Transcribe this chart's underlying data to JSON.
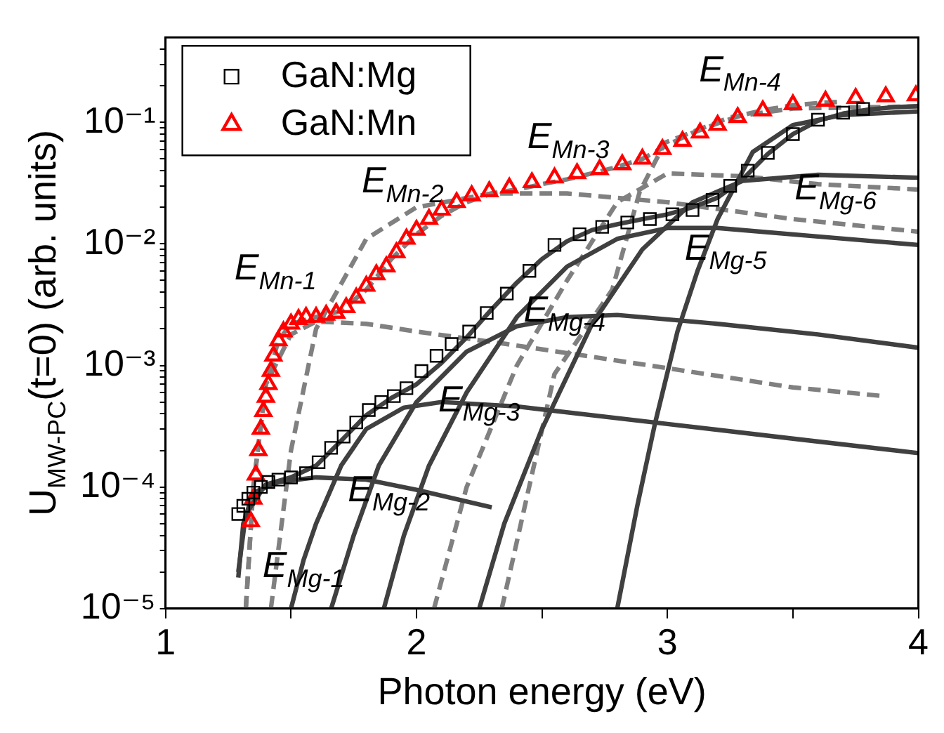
{
  "chart_data": {
    "type": "line",
    "xlabel": "Photon energy (eV)",
    "ylabel": "U$_{MW-PC}$(t=0) (arb. units)",
    "log": "y",
    "grid": false,
    "legend": "top left",
    "xlim": [
      1,
      4
    ],
    "xticks": [
      1,
      {
        "value": 1.5,
        "label": null
      },
      2,
      {
        "value": 2.5,
        "label": null
      },
      3,
      {
        "value": 3.5,
        "label": null
      },
      4
    ],
    "ylim": [
      1e-05,
      0.5
    ],
    "yticks": [
      {
        "value": 1e-05,
        "label": "10⁻⁵"
      },
      {
        "value": 2e-05,
        "label": null
      },
      {
        "value": 3e-05,
        "label": null
      },
      {
        "value": 4e-05,
        "label": null
      },
      {
        "value": 5e-05,
        "label": null
      },
      {
        "value": 6e-05,
        "label": null
      },
      {
        "value": 7e-05,
        "label": null
      },
      {
        "value": 8e-05,
        "label": null
      },
      {
        "value": 9e-05,
        "label": null
      },
      {
        "value": 0.0001,
        "label": "10⁻⁴"
      },
      {
        "value": 0.0002,
        "label": null
      },
      {
        "value": 0.0003,
        "label": null
      },
      {
        "value": 0.0004,
        "label": null
      },
      {
        "value": 0.0005,
        "label": null
      },
      {
        "value": 0.0006,
        "label": null
      },
      {
        "value": 0.0007,
        "label": null
      },
      {
        "value": 0.0008,
        "label": null
      },
      {
        "value": 0.0009,
        "label": null
      },
      {
        "value": 0.001,
        "label": "10⁻³"
      },
      {
        "value": 0.002,
        "label": null
      },
      {
        "value": 0.003,
        "label": null
      },
      {
        "value": 0.004,
        "label": null
      },
      {
        "value": 0.005,
        "label": null
      },
      {
        "value": 0.006,
        "label": null
      },
      {
        "value": 0.007,
        "label": null
      },
      {
        "value": 0.008,
        "label": null
      },
      {
        "value": 0.009,
        "label": null
      },
      {
        "value": 0.01,
        "label": "10⁻²"
      },
      {
        "value": 0.02,
        "label": null
      },
      {
        "value": 0.03,
        "label": null
      },
      {
        "value": 0.04,
        "label": null
      },
      {
        "value": 0.05,
        "label": null
      },
      {
        "value": 0.06,
        "label": null
      },
      {
        "value": 0.07,
        "label": null
      },
      {
        "value": 0.08,
        "label": null
      },
      {
        "value": 0.09,
        "label": null
      },
      {
        "value": 0.1,
        "label": "10⁻¹"
      },
      {
        "value": 0.2,
        "label": null
      },
      {
        "value": 0.3,
        "label": null
      },
      {
        "value": 0.4,
        "label": null
      }
    ],
    "series": [
      {
        "name": "GaN:Mg",
        "type": "scatter",
        "marker": "square",
        "color": "#000000",
        "x": [
          1.29,
          1.31,
          1.33,
          1.35,
          1.38,
          1.41,
          1.45,
          1.5,
          1.56,
          1.61,
          1.66,
          1.71,
          1.76,
          1.81,
          1.86,
          1.91,
          1.96,
          2.02,
          2.08,
          2.14,
          2.21,
          2.28,
          2.36,
          2.45,
          2.55,
          2.65,
          2.74,
          2.84,
          2.93,
          3.02,
          3.1,
          3.18,
          3.25,
          3.32,
          3.4,
          3.5,
          3.6,
          3.7,
          3.78
        ],
        "values": [
          6e-05,
          7e-05,
          8e-05,
          9e-05,
          0.0001,
          0.00011,
          0.000115,
          0.00012,
          0.00013,
          0.00016,
          0.00021,
          0.00026,
          0.00034,
          0.00043,
          0.0005,
          0.00056,
          0.00065,
          0.0009,
          0.0012,
          0.0015,
          0.0019,
          0.0027,
          0.0039,
          0.006,
          0.0098,
          0.012,
          0.0138,
          0.015,
          0.016,
          0.0175,
          0.019,
          0.023,
          0.03,
          0.04,
          0.056,
          0.08,
          0.105,
          0.12,
          0.129
        ]
      },
      {
        "name": "GaN:Mn",
        "type": "scatter",
        "marker": "triangle",
        "color": "#ff0000",
        "x": [
          1.34,
          1.35,
          1.36,
          1.37,
          1.38,
          1.39,
          1.4,
          1.41,
          1.42,
          1.43,
          1.45,
          1.47,
          1.5,
          1.53,
          1.56,
          1.6,
          1.64,
          1.68,
          1.72,
          1.76,
          1.8,
          1.84,
          1.88,
          1.92,
          1.96,
          2.0,
          2.05,
          2.1,
          2.16,
          2.22,
          2.29,
          2.37,
          2.46,
          2.55,
          2.64,
          2.73,
          2.82,
          2.9,
          2.98,
          3.06,
          3.13,
          3.2,
          3.28,
          3.38,
          3.5,
          3.63,
          3.75,
          3.87,
          3.99
        ],
        "values": [
          5.2e-05,
          8e-05,
          0.000126,
          0.0002,
          0.0003,
          0.00042,
          0.00055,
          0.0007,
          0.0009,
          0.0012,
          0.0016,
          0.0019,
          0.0022,
          0.0024,
          0.0025,
          0.0025,
          0.0026,
          0.0027,
          0.003,
          0.0036,
          0.0045,
          0.0056,
          0.0065,
          0.0085,
          0.011,
          0.013,
          0.016,
          0.019,
          0.022,
          0.025,
          0.027,
          0.029,
          0.032,
          0.035,
          0.038,
          0.041,
          0.045,
          0.05,
          0.06,
          0.07,
          0.082,
          0.095,
          0.11,
          0.125,
          0.14,
          0.15,
          0.158,
          0.163,
          0.166
        ]
      },
      {
        "type": "line",
        "line_style": "solid",
        "color": "#404040",
        "x": [
          1.29,
          1.32,
          1.4,
          1.5,
          1.6,
          1.7,
          1.8,
          1.9,
          2.0,
          2.1,
          2.2,
          2.3,
          2.4,
          2.5,
          2.6,
          2.7,
          2.8,
          2.9,
          3.0,
          3.1,
          3.2,
          3.3,
          3.4,
          3.5,
          3.6,
          3.7,
          3.8,
          3.9,
          4.0
        ],
        "values": [
          2e-05,
          6e-05,
          0.000105,
          0.00012,
          0.00015,
          0.00024,
          0.00039,
          0.00054,
          0.0007,
          0.00105,
          0.0017,
          0.0029,
          0.0048,
          0.0075,
          0.0105,
          0.013,
          0.0145,
          0.016,
          0.0175,
          0.02,
          0.024,
          0.034,
          0.055,
          0.08,
          0.103,
          0.118,
          0.127,
          0.133,
          0.136
        ]
      },
      {
        "type": "line",
        "line_style": "dashed",
        "color": "#808080",
        "x": [
          1.32,
          1.35,
          1.4,
          1.45,
          1.5,
          1.6,
          1.7,
          1.8,
          1.9,
          2.0,
          2.1,
          2.2,
          2.3,
          2.4,
          2.5,
          2.6,
          2.7,
          2.8,
          2.9,
          3.0,
          3.1,
          3.2,
          3.3,
          3.4,
          3.5,
          3.6,
          3.7
        ],
        "values": [
          1e-05,
          0.0001,
          0.0007,
          0.0016,
          0.0022,
          0.0025,
          0.0028,
          0.0042,
          0.0075,
          0.012,
          0.017,
          0.022,
          0.026,
          0.028,
          0.031,
          0.034,
          0.038,
          0.043,
          0.05,
          0.065,
          0.082,
          0.098,
          0.115,
          0.128,
          0.138,
          0.144,
          0.148
        ]
      },
      {
        "type": "line",
        "line_style": "solid",
        "color": "#404040",
        "x": [
          1.29,
          1.31,
          1.35,
          1.45,
          1.6,
          1.8,
          2.0,
          2.3
        ],
        "values": [
          1.8e-05,
          5e-05,
          9e-05,
          0.00011,
          0.00012,
          0.000115,
          9.5e-05,
          6.8e-05
        ]
      },
      {
        "type": "line",
        "line_style": "solid",
        "color": "#404040",
        "x": [
          1.5,
          1.55,
          1.6,
          1.7,
          1.8,
          1.95,
          2.1,
          2.4,
          3.0,
          3.5,
          4.0
        ],
        "values": [
          1e-05,
          2.5e-05,
          5e-05,
          0.00015,
          0.0003,
          0.00045,
          0.0005,
          0.00046,
          0.00033,
          0.00025,
          0.00019
        ]
      },
      {
        "type": "line",
        "line_style": "solid",
        "color": "#404040",
        "x": [
          1.66,
          1.75,
          1.85,
          2.0,
          2.2,
          2.4,
          2.6,
          2.8,
          3.2,
          3.6,
          4.0
        ],
        "values": [
          1e-05,
          4e-05,
          0.00015,
          0.0005,
          0.0013,
          0.0021,
          0.0025,
          0.0026,
          0.0022,
          0.0018,
          0.0014
        ]
      },
      {
        "type": "line",
        "line_style": "solid",
        "color": "#404040",
        "x": [
          1.87,
          1.95,
          2.05,
          2.2,
          2.4,
          2.6,
          2.8,
          3.0,
          3.2,
          3.6,
          4.0
        ],
        "values": [
          1e-05,
          4e-05,
          0.00015,
          0.0006,
          0.0025,
          0.0065,
          0.011,
          0.0135,
          0.0135,
          0.0115,
          0.0098
        ]
      },
      {
        "type": "line",
        "line_style": "solid",
        "color": "#404040",
        "x": [
          2.25,
          2.35,
          2.5,
          2.7,
          2.9,
          3.1,
          3.3,
          3.6,
          4.0
        ],
        "values": [
          1e-05,
          5e-05,
          0.0003,
          0.0022,
          0.009,
          0.022,
          0.033,
          0.037,
          0.035
        ]
      },
      {
        "type": "line",
        "line_style": "solid",
        "color": "#404040",
        "x": [
          2.8,
          2.88,
          2.95,
          3.04,
          3.12,
          3.2,
          3.34,
          3.5,
          3.7,
          4.0
        ],
        "values": [
          1e-05,
          7e-05,
          0.00033,
          0.0019,
          0.006,
          0.016,
          0.057,
          0.095,
          0.115,
          0.123
        ]
      },
      {
        "type": "line",
        "line_style": "dashed",
        "color": "#808080",
        "x": [
          1.32,
          1.35,
          1.4,
          1.5,
          1.6,
          1.8,
          2.0,
          2.36,
          3.0,
          3.5,
          3.86
        ],
        "values": [
          1e-05,
          0.0001,
          0.0007,
          0.0018,
          0.0023,
          0.0022,
          0.0019,
          0.0015,
          0.00095,
          0.00066,
          0.00056
        ]
      },
      {
        "type": "line",
        "line_style": "dashed",
        "color": "#808080",
        "x": [
          1.42,
          1.5,
          1.6,
          1.8,
          2.0,
          2.3,
          2.6,
          3.0,
          3.5,
          4.0
        ],
        "values": [
          1e-05,
          0.0002,
          0.002,
          0.011,
          0.02,
          0.026,
          0.026,
          0.022,
          0.016,
          0.0126
        ]
      },
      {
        "type": "line",
        "line_style": "dashed",
        "color": "#808080",
        "x": [
          2.07,
          2.2,
          2.4,
          2.6,
          2.8,
          3.0,
          3.3,
          3.6,
          4.0
        ],
        "values": [
          1e-05,
          0.0001,
          0.001,
          0.005,
          0.022,
          0.038,
          0.036,
          0.031,
          0.028
        ]
      },
      {
        "type": "line",
        "line_style": "dashed",
        "color": "#808080",
        "x": [
          2.34,
          2.43,
          2.55,
          2.78,
          2.89,
          2.99,
          3.25,
          3.5,
          4.0
        ],
        "values": [
          1e-05,
          6.7e-05,
          0.00085,
          0.0042,
          0.027,
          0.068,
          0.11,
          0.13,
          0.135
        ]
      }
    ],
    "annotations": [
      "E$_{Mn-1}$",
      "E$_{Mn-2}$",
      "E$_{Mn-3}$",
      "E$_{Mn-4}$",
      {
        "text": "E$_{Mg-1}$",
        "x": 1.55,
        "y": 2.2e-05
      },
      {
        "text": "E$_{Mg-2}$",
        "x": 1.89,
        "y": 9.3e-05
      },
      {
        "text": "E$_{Mg-3}$",
        "x": 2.25,
        "y": 0.00051
      },
      {
        "text": "E$_{Mg-4}$",
        "x": 2.59,
        "y": 0.0028
      },
      "E$_{Mg-5}$",
      {
        "text": "E$_{Mg-6}$",
        "x": 3.67,
        "y": 0.028
      }
    ]
  }
}
